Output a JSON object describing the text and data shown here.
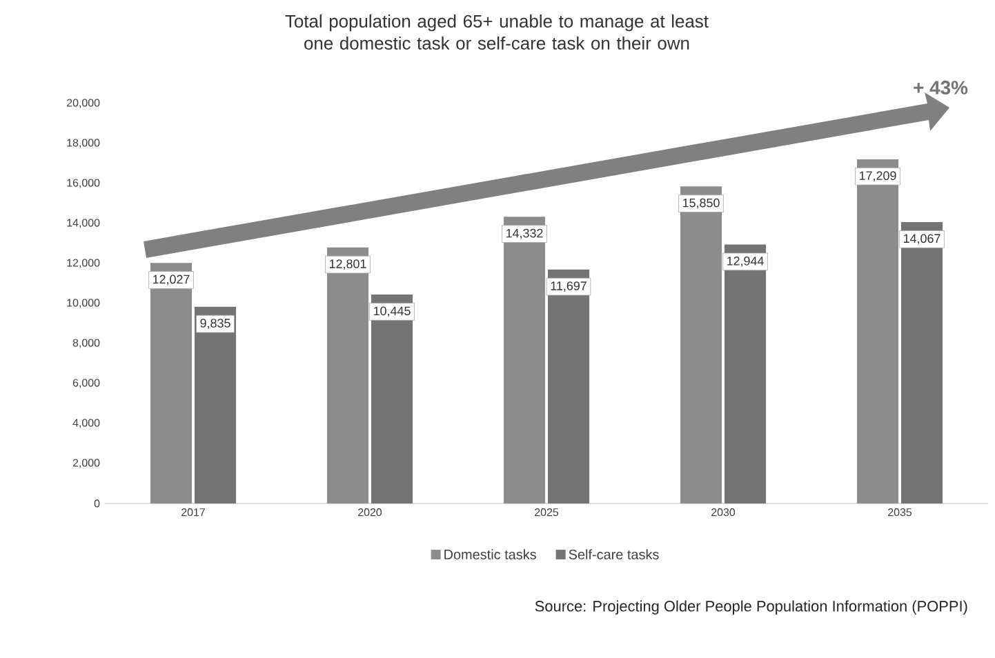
{
  "chart_data": {
    "type": "bar",
    "title": "Total population aged 65+ unable to manage at least one domestic task or self-care task on their own",
    "categories": [
      "2017",
      "2020",
      "2025",
      "2030",
      "2035"
    ],
    "series": [
      {
        "name": "Domestic tasks",
        "color": "#8c8c8c",
        "values": [
          12027,
          12801,
          14332,
          15850,
          17209
        ],
        "value_labels": [
          "12,027",
          "12,801",
          "14,332",
          "15,850",
          "17,209"
        ]
      },
      {
        "name": "Self-care tasks",
        "color": "#747474",
        "values": [
          9835,
          10445,
          11697,
          12944,
          14067
        ],
        "value_labels": [
          "9,835",
          "10,445",
          "11,697",
          "12,944",
          "14,067"
        ]
      }
    ],
    "ylim": [
      0,
      20000
    ],
    "yticks": [
      {
        "value": 0,
        "label": "0"
      },
      {
        "value": 2000,
        "label": "2,000"
      },
      {
        "value": 4000,
        "label": "4,000"
      },
      {
        "value": 6000,
        "label": "6,000"
      },
      {
        "value": 8000,
        "label": "8,000"
      },
      {
        "value": 10000,
        "label": "10,000"
      },
      {
        "value": 12000,
        "label": "12,000"
      },
      {
        "value": 14000,
        "label": "14,000"
      },
      {
        "value": 16000,
        "label": "16,000"
      },
      {
        "value": 18000,
        "label": "18,000"
      },
      {
        "value": 20000,
        "label": "20,000"
      }
    ],
    "legend": "bottom",
    "annotations": [
      "+ 43%",
      "Source: Projecting Older People Population Information (POPPI)"
    ]
  }
}
